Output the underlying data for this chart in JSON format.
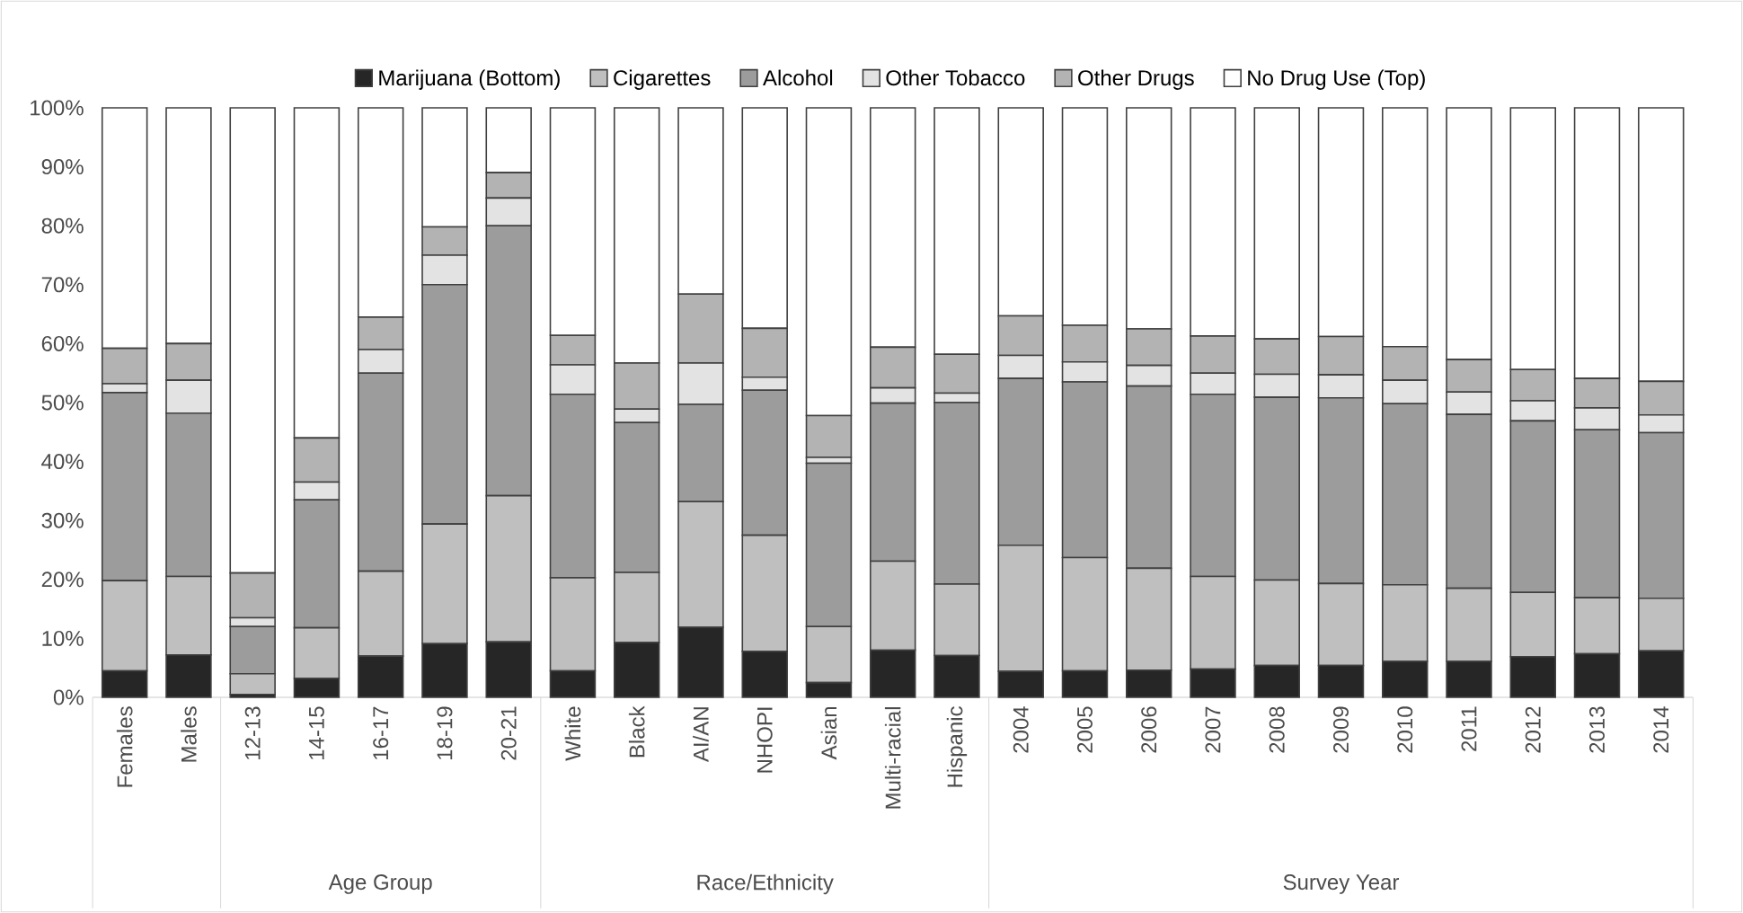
{
  "chart_data": {
    "type": "bar",
    "stacked": true,
    "legend": "top",
    "categories": [
      "Females",
      "Males",
      "12-13",
      "14-15",
      "16-17",
      "18-19",
      "20-21",
      "White",
      "Black",
      "AI/AN",
      "NHOPI",
      "Asian",
      "Multi-racial",
      "Hispanic",
      "2004",
      "2005",
      "2006",
      "2007",
      "2008",
      "2009",
      "2010",
      "2011",
      "2012",
      "2013",
      "2014"
    ],
    "series": [
      {
        "name": "Marijuana (Bottom)",
        "color": "#262626",
        "values": [
          4.5,
          7.2,
          0.5,
          3.2,
          7.0,
          9.1,
          9.4,
          4.5,
          9.3,
          11.9,
          7.8,
          2.5,
          8.0,
          7.1,
          4.4,
          4.5,
          4.6,
          4.8,
          5.4,
          5.4,
          6.1,
          6.1,
          6.9,
          7.4,
          7.9
        ]
      },
      {
        "name": "Cigarettes",
        "color": "#bfbfbf",
        "values": [
          15.3,
          13.3,
          3.5,
          8.6,
          14.4,
          20.3,
          24.8,
          15.8,
          11.9,
          21.3,
          19.7,
          9.5,
          15.1,
          12.1,
          21.4,
          19.2,
          17.3,
          15.7,
          14.5,
          13.9,
          13.0,
          12.4,
          10.9,
          9.5,
          8.9
        ]
      },
      {
        "name": "Alcohol",
        "color": "#9c9c9c",
        "values": [
          31.9,
          27.7,
          8.0,
          21.7,
          33.6,
          40.6,
          45.8,
          31.1,
          25.4,
          16.5,
          24.6,
          27.7,
          26.8,
          30.8,
          28.3,
          29.8,
          30.9,
          30.9,
          31.0,
          31.5,
          30.7,
          29.5,
          29.1,
          28.5,
          28.1
        ]
      },
      {
        "name": "Other Tobacco",
        "color": "#e3e3e3",
        "values": [
          1.5,
          5.6,
          1.5,
          3.0,
          4.0,
          5.0,
          4.7,
          5.0,
          2.3,
          7.0,
          2.2,
          1.0,
          2.6,
          1.6,
          3.9,
          3.4,
          3.5,
          3.6,
          3.9,
          3.9,
          4.0,
          3.8,
          3.4,
          3.7,
          3.0
        ]
      },
      {
        "name": "Other Drugs",
        "color": "#b3b3b3",
        "values": [
          6.0,
          6.2,
          7.6,
          7.5,
          5.5,
          4.8,
          4.3,
          5.0,
          7.8,
          11.7,
          8.3,
          7.1,
          6.9,
          6.6,
          6.7,
          6.2,
          6.2,
          6.3,
          6.0,
          6.5,
          5.7,
          5.5,
          5.3,
          5.0,
          5.7
        ]
      },
      {
        "name": "No Drug Use (Top)",
        "color": "#ffffff",
        "values": [
          40.8,
          40.0,
          78.9,
          56.0,
          35.5,
          20.2,
          11.0,
          38.6,
          43.3,
          31.6,
          37.4,
          52.2,
          40.6,
          41.8,
          35.3,
          36.9,
          37.5,
          38.7,
          39.2,
          38.8,
          40.5,
          42.7,
          44.4,
          45.9,
          46.4
        ]
      }
    ],
    "ylim": [
      0,
      100
    ],
    "yticks": [
      {
        "value": 0,
        "label": "0%"
      },
      {
        "value": 10,
        "label": "10%"
      },
      {
        "value": 20,
        "label": "20%"
      },
      {
        "value": 30,
        "label": "30%"
      },
      {
        "value": 40,
        "label": "40%"
      },
      {
        "value": 50,
        "label": "50%"
      },
      {
        "value": 60,
        "label": "60%"
      },
      {
        "value": 70,
        "label": "70%"
      },
      {
        "value": 80,
        "label": "80%"
      },
      {
        "value": 90,
        "label": "90%"
      },
      {
        "value": 100,
        "label": "100%"
      }
    ],
    "annotations": [
      "Age Group",
      "Race/Ethnicity",
      "Survey Year"
    ]
  }
}
